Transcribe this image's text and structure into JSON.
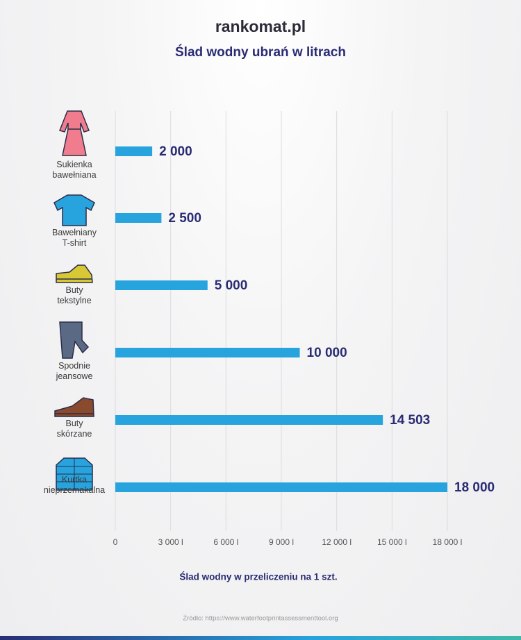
{
  "brand": "rankomat.pl",
  "chart_data": {
    "type": "bar",
    "orientation": "horizontal",
    "title": "Ślad wodny ubrań w litrach",
    "categories": [
      "Sukienka\nbawełniana",
      "Bawełniany\nT-shirt",
      "Buty\ntekstylne",
      "Spodnie\njeansowe",
      "Buty\nskórzane",
      "Kurtka\nnieprzemakalna"
    ],
    "values": [
      2000,
      2500,
      5000,
      10000,
      14503,
      18000
    ],
    "value_labels": [
      "2 000",
      "2 500",
      "5 000",
      "10 000",
      "14 503",
      "18 000"
    ],
    "color": "#27a3dd",
    "xlim": [
      0,
      18000
    ],
    "xticks": [
      0,
      {
        "value": 3000,
        "label": "3 000 l"
      },
      {
        "value": 6000,
        "label": "6 000 l"
      },
      {
        "value": 9000,
        "label": "9 000 l"
      },
      {
        "value": 12000,
        "label": "12 000 l"
      },
      {
        "value": 15000,
        "label": "15 000 l"
      },
      {
        "value": 18000,
        "label": "18 000 l"
      }
    ],
    "grid": true,
    "x_label": "Ślad wodny w przeliczeniu na 1 szt.",
    "source": "Źródło: https://www.waterfootprintassessmenttool.org"
  }
}
